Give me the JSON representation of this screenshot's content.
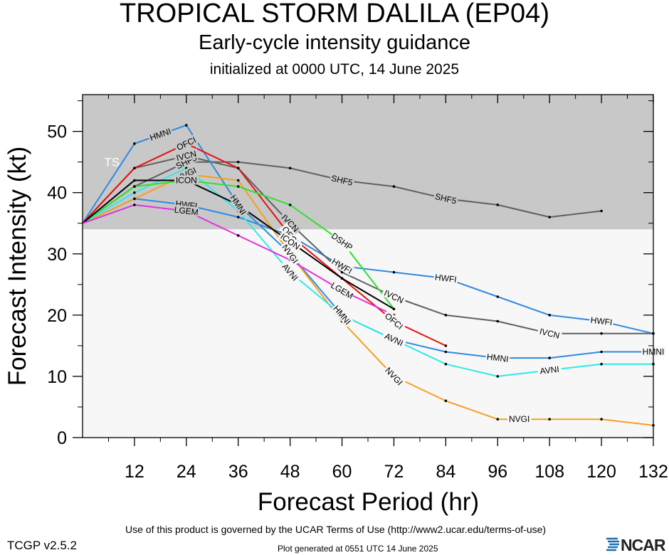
{
  "title": "TROPICAL STORM DALILA (EP04)",
  "subtitle": "Early-cycle intensity guidance",
  "initialized": "initialized at 0000 UTC, 14 June 2025",
  "footer": {
    "terms": "Use of this product is governed by the UCAR Terms of Use (http://www2.ucar.edu/terms-of-use)",
    "version": "TCGP v2.5.2",
    "generated": "Plot generated at 0551 UTC   14 June 2025",
    "logo": "NCAR"
  },
  "colors": {
    "band_tropical_storm": "#c8c8c8",
    "band_depression": "#f7f7f7"
  },
  "chart_data": {
    "type": "line",
    "xlabel": "Forecast Period (hr)",
    "ylabel": "Forecast Intensity (kt)",
    "xlim": [
      0,
      132
    ],
    "ylim": [
      0,
      56
    ],
    "xticks": [
      12,
      24,
      36,
      48,
      60,
      72,
      84,
      96,
      108,
      120,
      132
    ],
    "yticks": [
      0,
      10,
      20,
      30,
      40,
      50
    ],
    "bands": [
      {
        "label": "TS",
        "from": 34,
        "to": 56,
        "color": "#c8c8c8"
      },
      {
        "label": "",
        "from": 0,
        "to": 34,
        "color": "#f7f7f7"
      }
    ],
    "grid": false,
    "series": [
      {
        "name": "SHF5",
        "color": "#606060",
        "x": [
          0,
          12,
          24,
          36,
          48,
          60,
          72,
          84,
          96,
          108,
          120
        ],
        "y": [
          35,
          41,
          45,
          45,
          44,
          42,
          41,
          39,
          38,
          36,
          37
        ],
        "labels_at": [
          24,
          60,
          84
        ]
      },
      {
        "name": "HWFI",
        "color": "#2e8ae0",
        "x": [
          0,
          12,
          24,
          36,
          48,
          60,
          72,
          84,
          96,
          108,
          120,
          132
        ],
        "y": [
          35,
          39,
          38,
          36,
          33,
          28,
          27,
          26,
          23,
          20,
          19,
          17
        ],
        "labels_at": [
          24,
          60,
          84,
          120
        ]
      },
      {
        "name": "IVCN",
        "color": "#606060",
        "x": [
          0,
          12,
          24,
          36,
          48,
          60,
          72,
          84,
          96,
          108,
          120,
          132
        ],
        "y": [
          35,
          44,
          46,
          44,
          35,
          27,
          23,
          20,
          19,
          17,
          17,
          17
        ],
        "labels_at": [
          24,
          48,
          72,
          108
        ]
      },
      {
        "name": "HMNI",
        "color": "#2e8ae0",
        "x": [
          0,
          12,
          24,
          36,
          48,
          60,
          72,
          84,
          96,
          108,
          120,
          132
        ],
        "y": [
          35,
          48,
          51,
          38,
          30,
          20,
          16,
          14,
          13,
          13,
          14,
          14
        ],
        "labels_at": [
          18,
          36,
          60,
          96,
          132
        ]
      },
      {
        "name": "OFCI",
        "color": "#e81010",
        "x": [
          0,
          12,
          24,
          36,
          48,
          60,
          72,
          84
        ],
        "y": [
          35,
          44,
          48,
          44,
          33,
          26,
          19,
          15
        ],
        "labels_at": [
          24,
          48,
          72
        ]
      },
      {
        "name": "NVGI",
        "color": "#f5a020",
        "x": [
          0,
          12,
          24,
          36,
          48,
          60,
          72,
          84,
          96,
          108,
          120,
          132
        ],
        "y": [
          35,
          39,
          43,
          42,
          30,
          19,
          10,
          6,
          3,
          3,
          3,
          2
        ],
        "labels_at": [
          24,
          48,
          72,
          101
        ]
      },
      {
        "name": "AVNI",
        "color": "#30e8e8",
        "x": [
          0,
          12,
          24,
          36,
          48,
          60,
          72,
          84,
          96,
          108,
          120,
          132
        ],
        "y": [
          35,
          40,
          44,
          37,
          27,
          20,
          16,
          12,
          10,
          11,
          12,
          12
        ],
        "labels_at": [
          48,
          72,
          108
        ]
      },
      {
        "name": "DSHP",
        "color": "#30e030",
        "x": [
          0,
          12,
          24,
          36,
          48,
          60,
          72
        ],
        "y": [
          35,
          41,
          42,
          41,
          38,
          32,
          21
        ],
        "labels_at": [
          24,
          60
        ]
      },
      {
        "name": "ICON",
        "color": "#000000",
        "x": [
          0,
          12,
          24,
          36,
          48,
          60,
          72
        ],
        "y": [
          35,
          42,
          42,
          38,
          32,
          26,
          21
        ],
        "labels_at": [
          24,
          48
        ]
      },
      {
        "name": "LGEM",
        "color": "#e030e0",
        "x": [
          0,
          12,
          24,
          36,
          48,
          60,
          72
        ],
        "y": [
          35,
          38,
          37,
          33,
          29,
          24,
          20
        ],
        "labels_at": [
          24,
          60
        ]
      }
    ]
  }
}
